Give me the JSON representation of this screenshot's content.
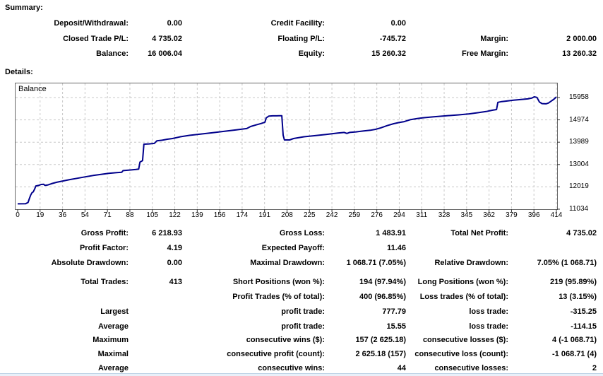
{
  "summary": {
    "heading": "Summary:",
    "rows": [
      {
        "c0": "Deposit/Withdrawal:",
        "c1": "0.00",
        "c2": "Credit Facility:",
        "c3": "0.00",
        "c4": "",
        "c5": ""
      },
      {
        "c0": "Closed Trade P/L:",
        "c1": "4 735.02",
        "c2": "Floating P/L:",
        "c3": "-745.72",
        "c4": "Margin:",
        "c5": "2 000.00"
      },
      {
        "c0": "Balance:",
        "c1": "16 006.04",
        "c2": "Equity:",
        "c3": "15 260.32",
        "c4": "Free Margin:",
        "c5": "13 260.32"
      }
    ]
  },
  "details": {
    "heading": "Details:",
    "stats1": [
      {
        "c0": "Gross Profit:",
        "c1": "6 218.93",
        "c2": "Gross Loss:",
        "c3": "1 483.91",
        "c4": "Total Net Profit:",
        "c5": "4 735.02"
      },
      {
        "c0": "Profit Factor:",
        "c1": "4.19",
        "c2": "Expected Payoff:",
        "c3": "11.46",
        "c4": "",
        "c5": ""
      },
      {
        "c0": "Absolute Drawdown:",
        "c1": "0.00",
        "c2": "Maximal Drawdown:",
        "c3": "1 068.71 (7.05%)",
        "c4": "Relative Drawdown:",
        "c5": "7.05% (1 068.71)"
      }
    ],
    "stats2": [
      {
        "c0": "Total Trades:",
        "c1": "413",
        "c2": "Short Positions (won %):",
        "c3": "194 (97.94%)",
        "c4": "Long Positions (won %):",
        "c5": "219 (95.89%)"
      },
      {
        "c0": "",
        "c1": "",
        "c2": "Profit Trades (% of total):",
        "c3": "400 (96.85%)",
        "c4": "Loss trades (% of total):",
        "c5": "13 (3.15%)"
      },
      {
        "c0": "Largest",
        "c1": "",
        "c2": "profit trade:",
        "c3": "777.79",
        "c4": "loss trade:",
        "c5": "-315.25"
      },
      {
        "c0": "Average",
        "c1": "",
        "c2": "profit trade:",
        "c3": "15.55",
        "c4": "loss trade:",
        "c5": "-114.15"
      },
      {
        "c0": "Maximum",
        "c1": "",
        "c2": "consecutive wins ($):",
        "c3": "157 (2 625.18)",
        "c4": "consecutive losses ($):",
        "c5": "4 (-1 068.71)"
      },
      {
        "c0": "Maximal",
        "c1": "",
        "c2": "consecutive profit (count):",
        "c3": "2 625.18 (157)",
        "c4": "consecutive loss (count):",
        "c5": "-1 068.71 (4)"
      },
      {
        "c0": "Average",
        "c1": "",
        "c2": "consecutive wins:",
        "c3": "44",
        "c4": "consecutive losses:",
        "c5": "2"
      }
    ]
  },
  "chart_data": {
    "type": "line",
    "title": "Balance",
    "legend": "Balance",
    "legend_position": "top-left",
    "grid": true,
    "line_color": "#00008b",
    "grid_color": "#c8c8c8",
    "border_color": "#666666",
    "tick_color": "#333333",
    "xlim": [
      0,
      414
    ],
    "ylim": [
      11034,
      16613
    ],
    "x_ticks": [
      0,
      19,
      36,
      54,
      71,
      88,
      105,
      122,
      139,
      156,
      174,
      191,
      208,
      225,
      242,
      259,
      276,
      294,
      311,
      328,
      345,
      362,
      379,
      396,
      414
    ],
    "y_ticks": [
      11034,
      12019,
      13004,
      13989,
      14974,
      15958
    ],
    "points": [
      [
        0,
        11271
      ],
      [
        6,
        11275
      ],
      [
        8,
        11330
      ],
      [
        9,
        11500
      ],
      [
        10,
        11650
      ],
      [
        11,
        11760
      ],
      [
        12,
        11800
      ],
      [
        13,
        11920
      ],
      [
        14,
        12060
      ],
      [
        16,
        12080
      ],
      [
        18,
        12125
      ],
      [
        20,
        12130
      ],
      [
        21,
        12085
      ],
      [
        23,
        12100
      ],
      [
        26,
        12160
      ],
      [
        30,
        12220
      ],
      [
        35,
        12280
      ],
      [
        40,
        12340
      ],
      [
        46,
        12400
      ],
      [
        52,
        12460
      ],
      [
        58,
        12520
      ],
      [
        64,
        12570
      ],
      [
        70,
        12615
      ],
      [
        76,
        12650
      ],
      [
        80,
        12665
      ],
      [
        81,
        12735
      ],
      [
        86,
        12760
      ],
      [
        91,
        12785
      ],
      [
        93,
        12800
      ],
      [
        94,
        13110
      ],
      [
        96,
        13175
      ],
      [
        97,
        13900
      ],
      [
        101,
        13915
      ],
      [
        105,
        13935
      ],
      [
        107,
        14050
      ],
      [
        111,
        14075
      ],
      [
        115,
        14120
      ],
      [
        119,
        14150
      ],
      [
        125,
        14230
      ],
      [
        132,
        14290
      ],
      [
        141,
        14350
      ],
      [
        150,
        14410
      ],
      [
        159,
        14470
      ],
      [
        168,
        14530
      ],
      [
        176,
        14590
      ],
      [
        179,
        14680
      ],
      [
        183,
        14750
      ],
      [
        187,
        14810
      ],
      [
        190,
        14870
      ],
      [
        191,
        15060
      ],
      [
        193,
        15140
      ],
      [
        196,
        15150
      ],
      [
        199,
        15150
      ],
      [
        201,
        15158
      ],
      [
        203,
        15158
      ],
      [
        204,
        14300
      ],
      [
        205,
        14089
      ],
      [
        209,
        14089
      ],
      [
        212,
        14150
      ],
      [
        220,
        14230
      ],
      [
        228,
        14275
      ],
      [
        237,
        14330
      ],
      [
        246,
        14390
      ],
      [
        251,
        14420
      ],
      [
        253,
        14375
      ],
      [
        255,
        14420
      ],
      [
        260,
        14445
      ],
      [
        266,
        14485
      ],
      [
        271,
        14515
      ],
      [
        275,
        14555
      ],
      [
        279,
        14620
      ],
      [
        284,
        14720
      ],
      [
        289,
        14805
      ],
      [
        293,
        14855
      ],
      [
        297,
        14895
      ],
      [
        302,
        14985
      ],
      [
        307,
        15030
      ],
      [
        311,
        15060
      ],
      [
        319,
        15105
      ],
      [
        329,
        15150
      ],
      [
        339,
        15195
      ],
      [
        347,
        15240
      ],
      [
        354,
        15290
      ],
      [
        360,
        15340
      ],
      [
        365,
        15400
      ],
      [
        368,
        15430
      ],
      [
        369,
        15745
      ],
      [
        372,
        15780
      ],
      [
        375,
        15800
      ],
      [
        381,
        15840
      ],
      [
        387,
        15875
      ],
      [
        392,
        15900
      ],
      [
        395,
        15935
      ],
      [
        397,
        15990
      ],
      [
        399,
        15965
      ],
      [
        401,
        15760
      ],
      [
        403,
        15690
      ],
      [
        406,
        15680
      ],
      [
        408,
        15720
      ],
      [
        410,
        15800
      ],
      [
        412,
        15880
      ],
      [
        414,
        15985
      ]
    ]
  }
}
